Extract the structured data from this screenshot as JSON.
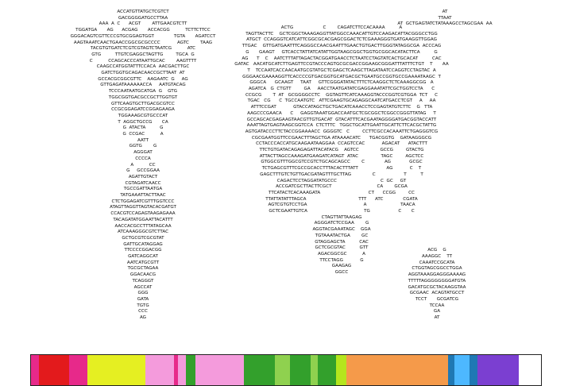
{
  "colors": {
    "red": "#e31a1c",
    "magenta": "#e7298a",
    "yellow": "#e5ef22",
    "lime": "#b5e61d",
    "pink": "#f49bdc",
    "green": "#33a02c",
    "light_green": "#8fd14f",
    "orange": "#f59a4a",
    "blue": "#1f78b4",
    "sky": "#4db8ff",
    "purple": "#7b3fd1"
  },
  "sequence_blocks": [
    {
      "name": "left-tree",
      "lines": [
        "ACCATGTTATGCTCGTCT",
        "GACGGGGATGCCTTAA",
        "AAA  A  C      ACGT        ATTGAACGTCTT",
        "TGGATGA       AG      ACGAG       ACCACGG           TCTTCTTCC",
        "GGGACAGTCGTTCCCGTGCGGAGTGGT              TGTA       AGATCCT",
        "AAGTAAATCAACTGAACCGGCGCGCCCC            AGTC        TAAG",
        "TACGTGTGATCTCGTCGTAGTCTAATCG           ATC",
        "GTG          TTGTCGAGGCTAGTTG         TGCA  G",
        "C           CCAGCACCCATAATTGCAC        AAGTTTT",
        "CAAGCCATGGTATTTCCACA  AACGACTTGC",
        "GATCTGGTGCAGACAACCGCTTAAT  AT",
        "GCCACGCGGCGTTC    AAGAATC  G     AG",
        "GTTGAGATAAAAAACCA     AATGTACAG",
        "TCCCAATAATGCATGA  G    GTG",
        "TGGCGGTGACGCCGCTTGGTGT",
        "GTTCAAGTGCTTGACGCGTCC",
        "CCGCGGAGATCCGGAGAAGA",
        "TGGAAAGCGTGCCCAT",
        "T  AGGCTGCCG       CA",
        "G  ATACTA          G",
        "G  CCGAC           A",
        "AATT",
        "GGTG        G",
        "AGGGAT",
        "CCCCA",
        "A           CC",
        "G     GCCGGAA",
        "AGATTGTACT",
        "CGTAGATCAACC",
        "TGCCGATTAATGA",
        "TATGAAATTACTTAAC",
        "CTCTGGAGATCGTTTGGTCCC",
        "ATAGTTAGGTTAGTACACGATGT",
        "CCACGTCCAGAGTAAGAGAAA",
        "TACAGATATGGAATTACATTT",
        "AACCACGCCTTTATAGCAA",
        "ATCAAAGGGCGTCTTAC",
        "GCTGCGTCGCGTAT",
        "GATTGCATAGGAG",
        "TTCCCCGGACGG",
        "GATCAGGCAT",
        "AATCATGCGTT",
        "TGCGCTAGAA",
        "GGACAACG",
        "TCAGGGT",
        "AGCCAT",
        "GGG",
        "GATA",
        "TGTG",
        "CCC",
        "AG"
      ]
    },
    {
      "name": "middle-tree",
      "lines": [
        "ACTG                     C        CAGATCTTCCACAAAA          A",
        "TAGTTACTTC    GCTCGGCTAAAGAGGTTATGGCCAAACATTGTCCAAGACATTACGGGCCTGG",
        "ATGCT  CCAGGGTCATCATTCGGCGCACGAGCGGACTCTCGAAAGGGTGATGAAGGTTGGAG",
        "TTGAC    GTTGATGAATTTCAGGGCCAACGAATTTGAACTGTGACTTGGGTATAGGCGA  ACCCAG",
        "G       GAAGT     GTCACCTATTATCATATTGGTAAGCGGCTGGTGCGGCACATACTTCA          G",
        "AG      T    C    AATCTTTATTAGACTACGGATGAACCTCTAATCCTAGTATCACTGCACAT          CAC",
        "GATAC   AACATGCATCTTGAGTTCCGTACCCAGTGCGCGACCGGAAGCGGGATTTATTTCTGT    T       AA",
        "T    TCCAATCACCAACAATGCGTATGCTCGAGCTCAAGCTTAGATAATCCAGGTCCTAGTAC  A",
        "GGGAACGAAAAGGTTCACCCCGTGACGGTGCATGACGCTGAATGCCGGTGCCGAAAATAAGC  T",
        "GGGCA      GCAAGT     TAAT     GTTCGGGATATACTTTCTCAAGGCTCTCAAAGGCGG   A",
        "AGATCA   G  CTGTT         GA     AACCTAATGATATCGAGGAAATATTCGCTGGTCCTA      C",
        "CCGCG        T  AT   GCGGGGCCTC    GGTAGTTCATCAAAGGTACCCGGTCGTGGA  TCT     C",
        "TGAC   CG      C  TGCCAATGTC   ATTCGAAGTGCAGAGGCAATCATGACCTCGT     A     AA",
        "ATTTCCGAT            GTACCATAGCTGCTGACATCAAACCTCCGAGTATGTCTTC    G   TTA",
        "AAGCCCGAACA      C     GAGGTAAATGGACCAATGCTCGCGGCTCGGCCGGGTTATAG     T",
        "GCCAGCACGAGAAGTAACGTTGTGACAT  GTACATTTCACGAATAGGGGATGACGGTACCATT",
        "AAATTAGTGAGTAAGCGGTCCA  CTCTTTC   TGGCTGCATTGAATTGCATTCTTCACGCTATTG",
        "AGTGATACCCTTCTACCGGAAAACC  GGGGTC   C         CCTTCGCCACAAATTCTGAGGGTCG",
        "CGCGAATGGTTCCGAACTTTAGCTGA ATAAAACATC      TGACGGTG    GATAAGGGCG",
        "CCTACCCACCATGCAAGAATAAGGAA  CCAGTCCAC            AGACAT      ATACTTT",
        "TTCTGTGATACAGAGAGATTACATACG    AGTCC               GCCG         GTACTG",
        "ATTACTTAGCCAAAGATGAAGATCATAGT  ATAC                TAGC         AGCTCC",
        "GTGGCGTTTGGCGTCCGTCTGCAGCAGCC        C              AG             GCGC",
        "TCTGAGCGTTTCGCCGCACCTTTACACTTTATT                    AG            C    T",
        "GAGCTTTGTCTGTTGACGATAGTTTGCTTAG               C                    T          T",
        "CAGACTCCTAGGATATGCCC                               C  GC     GT",
        "ACCGATCGCTTACTTCGCT                                CA        GCGA",
        "TTCATACTCACAAAGATA                                  CT      CCGG         CC",
        "TTATTATATTTAGCA                                     TTT      ATC              CGATA",
        "AGTCGTGTCCTGA                                        A                        TAACA",
        "GCTCGAATTGTCA                                        TG                    C       C",
        "CTAGTTATTAAGAG",
        "AGGGATCTCCGAA        G",
        "AGGTACGAAATAGC    GGA",
        "TGTAAATACTGA        GC",
        "GTAGGAGCTA          CAC",
        "GCTCGCGTAC          GTT",
        "AGACGGCGC           A",
        "TTCCTAGG            G",
        "GAAGAG",
        "GGCC"
      ]
    },
    {
      "name": "right-tree",
      "lines": [
        "AT",
        "TTAAT",
        "AT  GCTGAGTATCTATAAAGCCTAGCGAA  AA",
        "ACG    G",
        "AAAGGC    TT",
        "CAAATCCGCATA",
        "CTGGTAGCGGCCTGGA",
        "AGGTAAAGGAGGGAAAAG",
        "TTTTTAGGGGGGGGATGTA",
        "GACATGCGCTACAAGGTAA",
        "GCGAAC  ACAGTATGCCT",
        "TCCT       GCGATCG",
        "TCCAA",
        "GA",
        "AT"
      ]
    }
  ],
  "structure_bar": {
    "segments": [
      {
        "color": "magenta",
        "fraction": 0.015
      },
      {
        "color": "red",
        "fraction": 0.06
      },
      {
        "color": "magenta",
        "fraction": 0.035
      },
      {
        "color": "yellow",
        "fraction": 0.115
      },
      {
        "color": "pink",
        "fraction": 0.055
      },
      {
        "color": "magenta",
        "fraction": 0.008
      },
      {
        "color": "pink",
        "fraction": 0.015
      },
      {
        "color": "green",
        "fraction": 0.02
      },
      {
        "color": "pink",
        "fraction": 0.095
      },
      {
        "color": "green",
        "fraction": 0.06
      },
      {
        "color": "light_green",
        "fraction": 0.03
      },
      {
        "color": "green",
        "fraction": 0.04
      },
      {
        "color": "light_green",
        "fraction": 0.015
      },
      {
        "color": "green",
        "fraction": 0.035
      },
      {
        "color": "lime",
        "fraction": 0.02
      },
      {
        "color": "orange",
        "fraction": 0.2
      },
      {
        "color": "blue",
        "fraction": 0.012
      },
      {
        "color": "sky",
        "fraction": 0.03
      },
      {
        "color": "blue",
        "fraction": 0.015
      },
      {
        "color": "purple",
        "fraction": 0.08
      }
    ]
  }
}
